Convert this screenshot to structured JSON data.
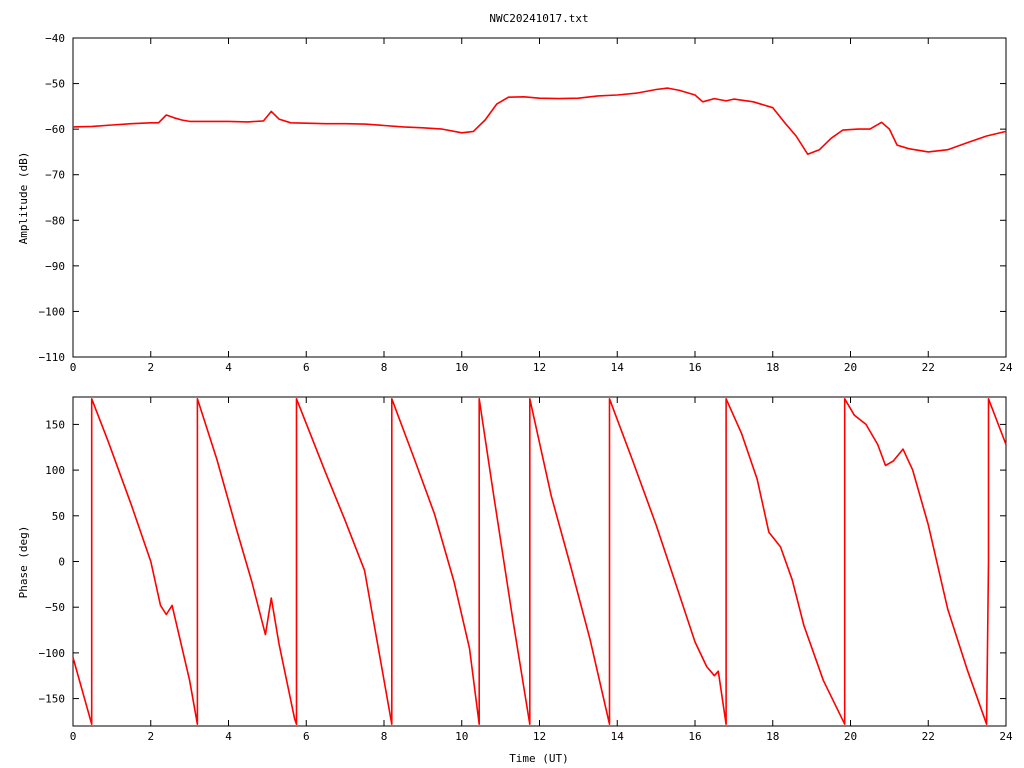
{
  "chart_data": [
    {
      "type": "line",
      "title": "NWC20241017.txt",
      "xlabel": "",
      "ylabel": "Amplitude (dB)",
      "xlim": [
        0,
        24
      ],
      "ylim": [
        -110,
        -40
      ],
      "x_ticks": [
        "0",
        "2",
        "4",
        "6",
        "8",
        "10",
        "12",
        "14",
        "16",
        "18",
        "20",
        "22",
        "24"
      ],
      "y_ticks": [
        "−40",
        "−50",
        "−60",
        "−70",
        "−80",
        "−90",
        "−100",
        "−110"
      ],
      "series_color": "#ff0000",
      "grid": false,
      "series": [
        {
          "x": [
            0,
            0.5,
            1,
            1.5,
            2,
            2.2,
            2.4,
            2.6,
            2.8,
            3,
            3.5,
            4,
            4.5,
            4.9,
            5.1,
            5.3,
            5.6,
            6,
            6.5,
            7,
            7.5,
            8,
            8.5,
            9,
            9.5,
            10,
            10.3,
            10.6,
            10.9,
            11.2,
            11.6,
            12,
            12.5,
            13,
            13.5,
            14,
            14.5,
            15,
            15.3,
            15.6,
            16,
            16.2,
            16.5,
            16.8,
            17,
            17.5,
            18,
            18.3,
            18.6,
            18.9,
            19.2,
            19.5,
            19.8,
            20.2,
            20.5,
            20.8,
            21,
            21.2,
            21.5,
            22,
            22.5,
            23,
            23.5,
            24
          ],
          "y": [
            -59.5,
            -59.4,
            -59.1,
            -58.8,
            -58.6,
            -58.6,
            -56.9,
            -57.5,
            -58.0,
            -58.3,
            -58.3,
            -58.3,
            -58.4,
            -58.2,
            -56.1,
            -57.8,
            -58.6,
            -58.7,
            -58.8,
            -58.8,
            -58.9,
            -59.2,
            -59.5,
            -59.7,
            -60.0,
            -60.8,
            -60.5,
            -58.0,
            -54.5,
            -53.0,
            -52.9,
            -53.2,
            -53.3,
            -53.2,
            -52.7,
            -52.5,
            -52.1,
            -51.3,
            -51.0,
            -51.5,
            -52.5,
            -54.0,
            -53.3,
            -53.8,
            -53.4,
            -54.0,
            -55.3,
            -58.5,
            -61.5,
            -65.5,
            -64.5,
            -62.0,
            -60.2,
            -60.0,
            -60.0,
            -58.5,
            -60.0,
            -63.5,
            -64.3,
            -65.0,
            -64.5,
            -63.0,
            -61.5,
            -60.5
          ]
        }
      ]
    },
    {
      "type": "line",
      "title": "",
      "xlabel": "Time (UT)",
      "ylabel": "Phase (deg)",
      "xlim": [
        0,
        24
      ],
      "ylim": [
        -180,
        180
      ],
      "x_ticks": [
        "0",
        "2",
        "4",
        "6",
        "8",
        "10",
        "12",
        "14",
        "16",
        "18",
        "20",
        "22",
        "24"
      ],
      "y_ticks": [
        "150",
        "100",
        "50",
        "0",
        "−50",
        "−100",
        "−150"
      ],
      "series_color": "#ff0000",
      "grid": false,
      "series": [
        {
          "x": [
            0,
            0.48,
            0.48,
            0.9,
            1.5,
            2.0,
            2.25,
            2.4,
            2.55,
            3.0,
            3.2,
            3.2,
            3.7,
            4.2,
            4.6,
            4.95,
            5.1,
            5.3,
            5.7,
            5.75,
            5.75,
            6.5,
            7.0,
            7.5,
            8.2,
            8.2,
            8.8,
            9.3,
            9.8,
            10.2,
            10.45,
            10.45,
            10.8,
            11.3,
            11.75,
            11.75,
            12.3,
            12.8,
            13.3,
            13.8,
            13.8,
            14.4,
            15.0,
            15.5,
            16.0,
            16.3,
            16.5,
            16.6,
            16.8,
            16.8,
            17.2,
            17.6,
            17.9,
            18.2,
            18.5,
            18.8,
            19.3,
            19.85,
            19.85,
            20.1,
            20.4,
            20.7,
            20.9,
            21.1,
            21.35,
            21.6,
            22.0,
            22.5,
            23.0,
            23.5,
            23.55,
            23.55,
            24.0
          ],
          "y": [
            -105,
            -178,
            178,
            132,
            62,
            0,
            -48,
            -58,
            -48,
            -130,
            -178,
            178,
            112,
            36,
            -22,
            -80,
            -40,
            -90,
            -172,
            -178,
            178,
            97,
            45,
            -10,
            -178,
            178,
            110,
            52,
            -22,
            -95,
            -178,
            178,
            78,
            -60,
            -178,
            178,
            72,
            -5,
            -85,
            -178,
            178,
            110,
            40,
            -24,
            -88,
            -115,
            -125,
            -120,
            -178,
            178,
            140,
            90,
            32,
            16,
            -20,
            -70,
            -130,
            -178,
            178,
            160,
            150,
            128,
            105,
            110,
            123,
            100,
            40,
            -52,
            -118,
            -178,
            0,
            178,
            128
          ]
        }
      ]
    }
  ]
}
